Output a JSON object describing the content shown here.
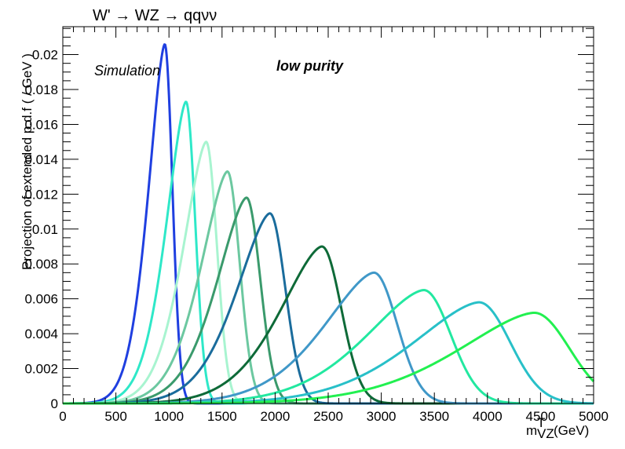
{
  "chart_data": {
    "type": "line",
    "title": "W' → WZ → qqνν",
    "xlabel": "m",
    "xlabel_sup": "T",
    "xlabel_sub": "VZ",
    "xlabel_unit": "(GeV)",
    "ylabel": "Projection of extended p.d.f ( / GeV )",
    "annotations": [
      "Simulation",
      "low purity"
    ],
    "xlim": [
      0,
      5000
    ],
    "ylim": [
      0,
      0.0216
    ],
    "x_ticks": [
      0,
      500,
      1000,
      1500,
      2000,
      2500,
      3000,
      3500,
      4000,
      4500,
      5000
    ],
    "y_ticks": [
      0,
      0.002,
      0.004,
      0.006,
      0.008,
      0.01,
      0.012,
      0.014,
      0.016,
      0.018,
      0.02
    ],
    "y_tick_labels": [
      "0",
      "0.002",
      "0.004",
      "0.006",
      "0.008",
      "0.01",
      "0.012",
      "0.014",
      "0.016",
      "0.018",
      "0.02"
    ],
    "grid": false,
    "series": [
      {
        "peak_x": 960,
        "peak_y": 0.0206,
        "color": "#1f3fe0"
      },
      {
        "peak_x": 1160,
        "peak_y": 0.0173,
        "color": "#2ee8c8"
      },
      {
        "peak_x": 1350,
        "peak_y": 0.015,
        "color": "#a8f4d0"
      },
      {
        "peak_x": 1550,
        "peak_y": 0.0133,
        "color": "#6cc8a0"
      },
      {
        "peak_x": 1730,
        "peak_y": 0.0118,
        "color": "#3a9a6c"
      },
      {
        "peak_x": 1950,
        "peak_y": 0.0109,
        "color": "#1a6c9c"
      },
      {
        "peak_x": 2440,
        "peak_y": 0.009,
        "color": "#0e6a38"
      },
      {
        "peak_x": 2930,
        "peak_y": 0.0075,
        "color": "#4098c8"
      },
      {
        "peak_x": 3400,
        "peak_y": 0.0065,
        "color": "#22e8a0"
      },
      {
        "peak_x": 3920,
        "peak_y": 0.0058,
        "color": "#28c0c8"
      },
      {
        "peak_x": 4440,
        "peak_y": 0.0052,
        "color": "#22f050"
      }
    ]
  }
}
